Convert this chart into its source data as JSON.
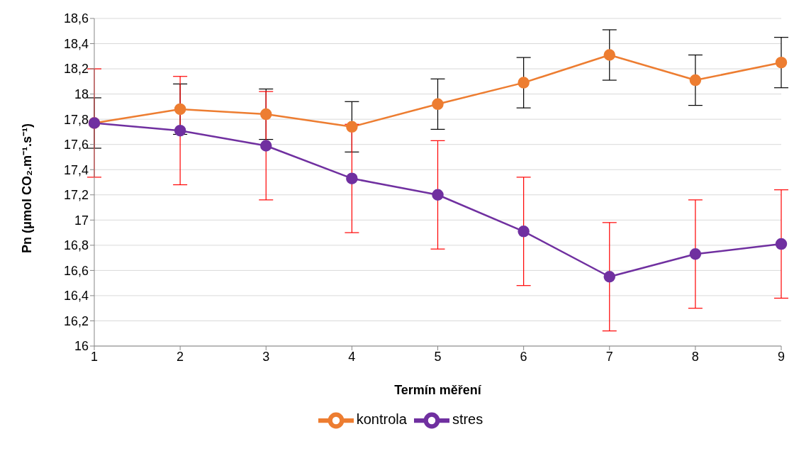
{
  "chart_data": {
    "type": "line",
    "xlabel": "Termín měření",
    "ylabel": "Pn (μmol CO₂.m⁻¹.s⁻¹)",
    "categories": [
      "1",
      "2",
      "3",
      "4",
      "5",
      "6",
      "7",
      "8",
      "9"
    ],
    "series": [
      {
        "name": "kontrola",
        "color": "#ed7d31",
        "values": [
          17.77,
          17.88,
          17.84,
          17.74,
          17.92,
          18.09,
          18.31,
          18.11,
          18.25
        ],
        "errors": [
          0.2,
          0.2,
          0.2,
          0.2,
          0.2,
          0.2,
          0.2,
          0.2,
          0.2
        ]
      },
      {
        "name": "stres",
        "color": "#7030a0",
        "values": [
          17.77,
          17.71,
          17.59,
          17.33,
          17.2,
          16.91,
          16.55,
          16.73,
          16.81
        ],
        "errors": [
          0.43,
          0.43,
          0.43,
          0.43,
          0.43,
          0.43,
          0.43,
          0.43,
          0.43
        ]
      }
    ],
    "ylim": [
      16,
      18.6
    ],
    "yticks": [
      {
        "value": 16,
        "label": "16"
      },
      {
        "value": 16.2,
        "label": "16,2"
      },
      {
        "value": 16.4,
        "label": "16,4"
      },
      {
        "value": 16.6,
        "label": "16,6"
      },
      {
        "value": 16.8,
        "label": "16,8"
      },
      {
        "value": 17,
        "label": "17"
      },
      {
        "value": 17.2,
        "label": "17,2"
      },
      {
        "value": 17.4,
        "label": "17,4"
      },
      {
        "value": 17.6,
        "label": "17,6"
      },
      {
        "value": 17.8,
        "label": "17,8"
      },
      {
        "value": 18,
        "label": "18"
      },
      {
        "value": 18.2,
        "label": "18,2"
      },
      {
        "value": 18.4,
        "label": "18,4"
      },
      {
        "value": 18.6,
        "label": "18,6"
      }
    ],
    "grid": "y",
    "legend": "bottom",
    "marker": "circle",
    "line_style": "solid"
  }
}
